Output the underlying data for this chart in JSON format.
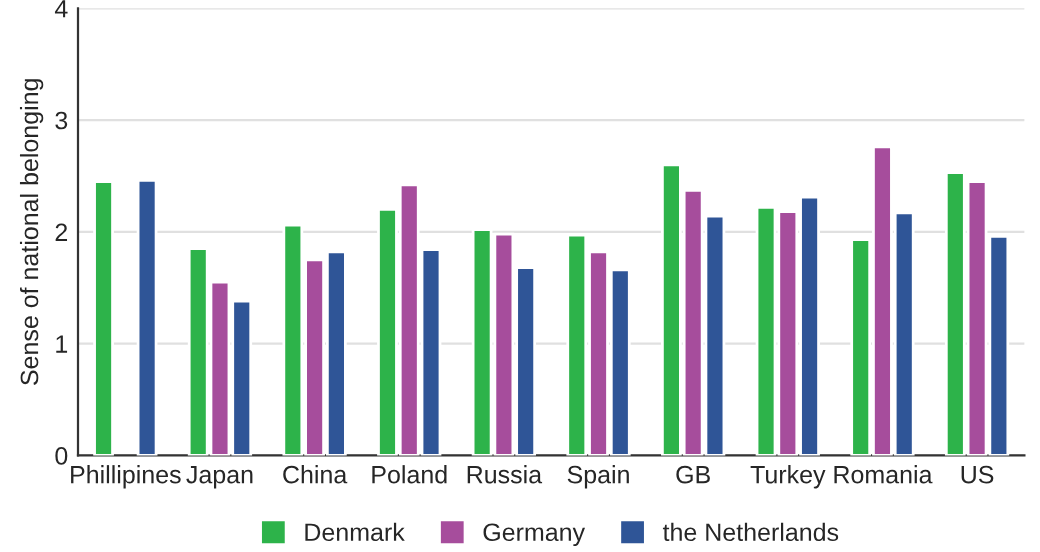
{
  "chart_data": {
    "type": "bar",
    "ylabel": "Sense of national belonging",
    "categories": [
      "Phillipines",
      "Japan",
      "China",
      "Poland",
      "Russia",
      "Spain",
      "GB",
      "Turkey",
      "Romania",
      "US"
    ],
    "series": [
      {
        "name": "Denmark",
        "color": "#2db34a",
        "values": [
          2.45,
          1.85,
          2.06,
          2.2,
          2.02,
          1.97,
          2.6,
          2.22,
          1.93,
          2.53
        ]
      },
      {
        "name": "Germany",
        "color": "#a64d9c",
        "values": [
          null,
          1.55,
          1.75,
          2.42,
          1.98,
          1.82,
          2.37,
          2.18,
          2.76,
          2.45
        ]
      },
      {
        "name": "the Netherlands",
        "color": "#2f5597",
        "values": [
          2.46,
          1.38,
          1.82,
          1.84,
          1.68,
          1.66,
          2.14,
          2.31,
          2.17,
          1.96
        ]
      }
    ],
    "ylim": [
      0,
      4
    ],
    "yticks": [
      0,
      1,
      2,
      3,
      4
    ],
    "grid": "y",
    "legend": "bottom"
  }
}
